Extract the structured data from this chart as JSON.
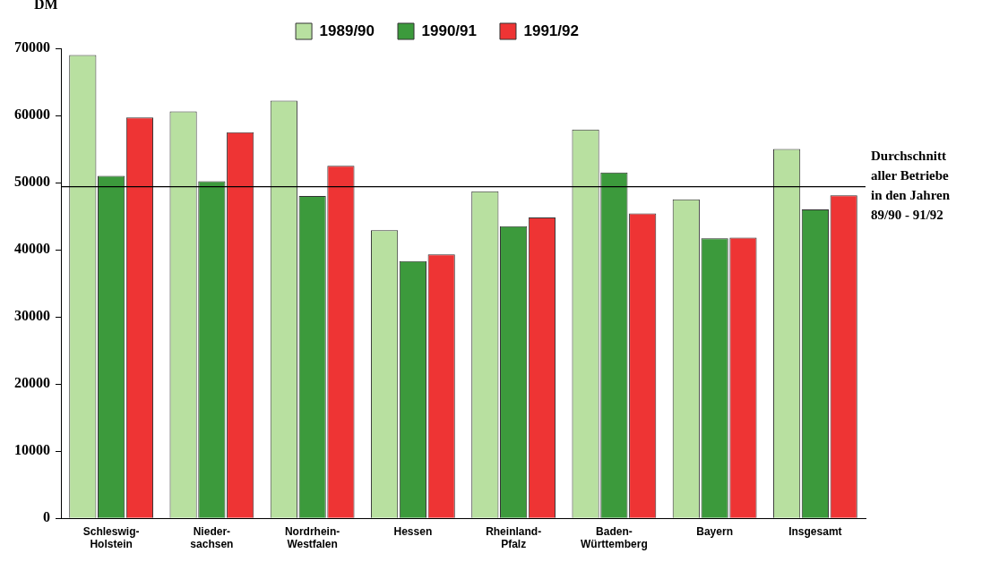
{
  "chart_data": {
    "type": "bar",
    "ylabel": "DM",
    "categories": [
      "Schleswig-\nHolstein",
      "Nieder-\nsachsen",
      "Nordrhein-\nWestfalen",
      "Hessen",
      "Rheinland-\nPfalz",
      "Baden-\nWürttemberg",
      "Bayern",
      "Insgesamt"
    ],
    "series": [
      {
        "name": "1989/90",
        "color": "#b8e0a0",
        "values": [
          69000,
          60600,
          62200,
          42900,
          48700,
          57900,
          47500,
          55000
        ]
      },
      {
        "name": "1990/91",
        "color": "#3c9a3c",
        "values": [
          51000,
          50200,
          48000,
          38300,
          43500,
          51500,
          41700,
          46000
        ]
      },
      {
        "name": "1991/92",
        "color": "#ee3434",
        "values": [
          59700,
          57500,
          52500,
          39300,
          44800,
          45400,
          41800,
          48100
        ]
      }
    ],
    "ylim": [
      0,
      70000
    ],
    "yticks": [
      0,
      10000,
      20000,
      30000,
      40000,
      50000,
      60000,
      70000
    ],
    "ref_lines": [
      {
        "axis": "y",
        "value": 49400,
        "label": "Durchschnitt\naller Betriebe\nin den Jahren\n89/90 - 91/92",
        "color": "#000000"
      }
    ],
    "legend": "top",
    "grid": false
  }
}
